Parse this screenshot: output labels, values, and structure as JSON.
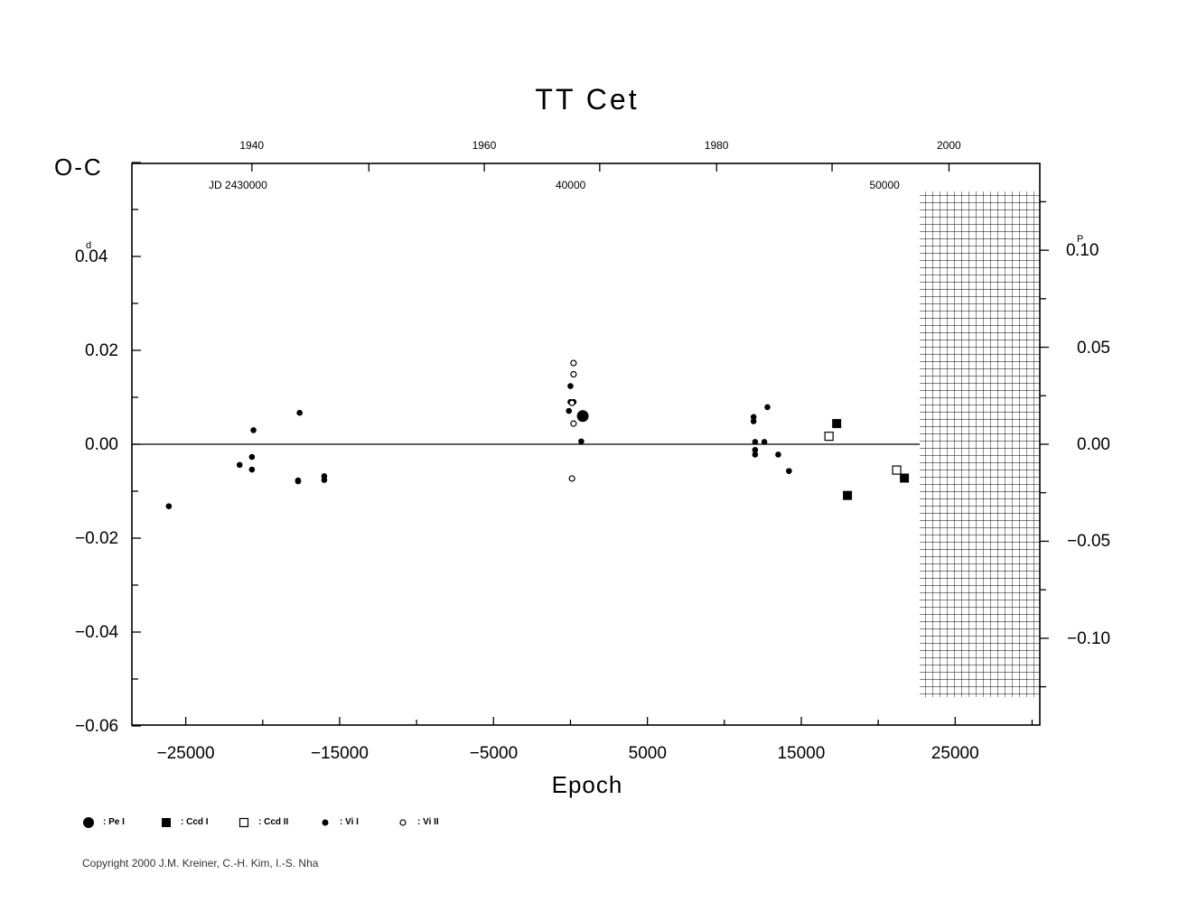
{
  "chart_data": {
    "type": "scatter",
    "title": "TT  Cet",
    "ylabel": "O-C",
    "xlabel": "Epoch",
    "xlim": [
      -28500,
      30500
    ],
    "ylim": [
      -0.06,
      0.06
    ],
    "x_ticks": [
      -25000,
      -15000,
      -5000,
      5000,
      15000,
      25000
    ],
    "x_tick_labels": [
      "−25000",
      "−15000",
      "−5000",
      "5000",
      "15000",
      "25000"
    ],
    "y_ticks": [
      -0.06,
      -0.04,
      -0.02,
      0.0,
      0.02,
      0.04
    ],
    "y_tick_labels": [
      "−0.06",
      "−0.04",
      "−0.02",
      "0.00",
      "0.02",
      "0.04"
    ],
    "y_unit_superscript": "d",
    "y2_ticks": [
      -0.1,
      -0.05,
      0.0,
      0.05,
      0.1
    ],
    "y2_tick_labels": [
      "−0.10",
      "−0.05",
      "0.00",
      "0.05",
      "0.10"
    ],
    "y2_unit_superscript": "P",
    "y2_per_y": 2.42,
    "top_year_ticks": [
      1940,
      1960,
      1980,
      2000
    ],
    "top_year_positions": [
      -20700,
      -5600,
      9500,
      24600
    ],
    "top_minor_positions": [
      -13100,
      1900,
      17000
    ],
    "jd_labels": [
      {
        "text": "JD 2430000",
        "x": -21600
      },
      {
        "text": "40000",
        "x": 0
      },
      {
        "text": "50000",
        "x": 20400
      }
    ],
    "hatched_from_x": 22700,
    "legend_position": "bottom-left",
    "series": [
      {
        "name": ": Pe I",
        "marker": "big-filled-circle",
        "points": [
          [
            800,
            0.006
          ]
        ]
      },
      {
        "name": ": Ccd I",
        "marker": "filled-square",
        "points": [
          [
            17300,
            0.0044
          ],
          [
            18000,
            -0.0109
          ],
          [
            21700,
            -0.0072
          ]
        ]
      },
      {
        "name": ": Ccd II",
        "marker": "open-square",
        "points": [
          [
            16800,
            0.0017
          ],
          [
            21200,
            -0.0055
          ]
        ]
      },
      {
        "name": ": Vi I",
        "marker": "small-filled-circle",
        "points": [
          [
            -26100,
            -0.0132
          ],
          [
            -21500,
            -0.0044
          ],
          [
            -20700,
            -0.0027
          ],
          [
            -20700,
            -0.0054
          ],
          [
            -20600,
            0.003
          ],
          [
            -17700,
            -0.0077
          ],
          [
            -17700,
            -0.0079
          ],
          [
            -17600,
            0.0067
          ],
          [
            -16000,
            -0.0068
          ],
          [
            -16000,
            -0.0076
          ],
          [
            0,
            0.0124
          ],
          [
            0,
            0.009
          ],
          [
            -100,
            0.0071
          ],
          [
            200,
            0.009
          ],
          [
            700,
            0.0006
          ],
          [
            11900,
            0.0058
          ],
          [
            11900,
            0.0049
          ],
          [
            12000,
            0.0005
          ],
          [
            12000,
            -0.0012
          ],
          [
            12000,
            -0.0022
          ],
          [
            12600,
            0.0005
          ],
          [
            12800,
            0.0079
          ],
          [
            13500,
            -0.0022
          ],
          [
            14200,
            -0.0057
          ]
        ]
      },
      {
        "name": ": Vi II",
        "marker": "small-open-circle",
        "points": [
          [
            200,
            0.0173
          ],
          [
            200,
            0.0149
          ],
          [
            100,
            0.0088
          ],
          [
            200,
            0.0044
          ],
          [
            100,
            -0.0073
          ]
        ]
      }
    ]
  },
  "copyright": "Copyright 2000 J.M. Kreiner, C.-H. Kim, I.-S. Nha"
}
